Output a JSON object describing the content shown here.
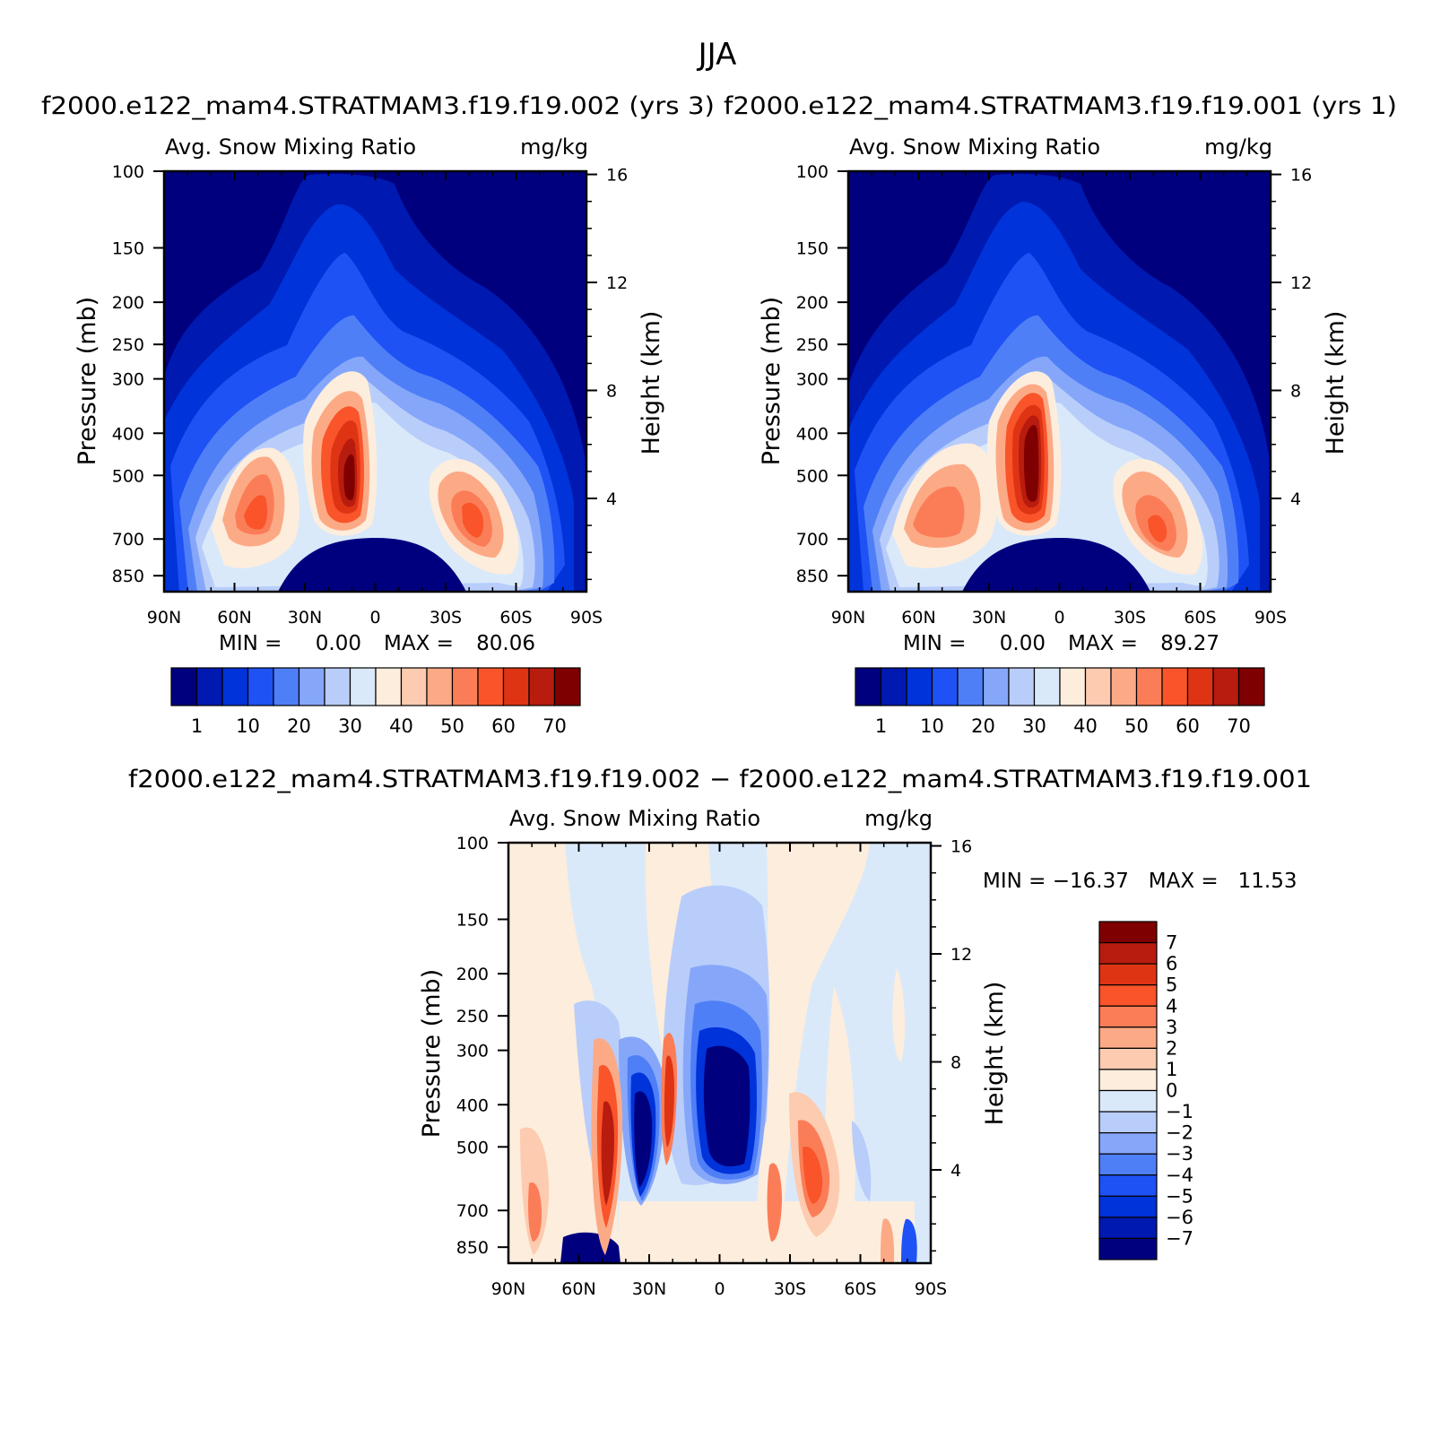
{
  "page": {
    "season": "JJA"
  },
  "panels": [
    {
      "case_header": "f2000.e122_mam4.STRATMAM3.f19.f19.002 (yrs 3)",
      "left_title": "Avg. Snow Mixing Ratio",
      "right_title": "mg/kg",
      "ylabel": "Pressure (mb)",
      "y2label": "Height (km)",
      "min_text": "MIN =",
      "min_val": "0.00",
      "max_text": "MAX =",
      "max_val": "80.06"
    },
    {
      "case_header": "f2000.e122_mam4.STRATMAM3.f19.f19.001 (yrs 1)",
      "left_title": "Avg. Snow Mixing Ratio",
      "right_title": "mg/kg",
      "ylabel": "Pressure (mb)",
      "y2label": "Height (km)",
      "min_text": "MIN =",
      "min_val": "0.00",
      "max_text": "MAX =",
      "max_val": "89.27"
    },
    {
      "case_header": "f2000.e122_mam4.STRATMAM3.f19.f19.002 − f2000.e122_mam4.STRATMAM3.f19.f19.001",
      "left_title": "Avg. Snow Mixing Ratio",
      "right_title": "mg/kg",
      "ylabel": "Pressure (mb)",
      "y2label": "Height (km)",
      "minmax": "MIN = −16.37   MAX =   11.53"
    }
  ],
  "axes": {
    "x_ticks": [
      "90N",
      "60N",
      "30N",
      "0",
      "30S",
      "60S",
      "90S"
    ],
    "y_ticks": [
      "100",
      "150",
      "200",
      "250",
      "300",
      "400",
      "500",
      "700",
      "850"
    ],
    "height_ticks": [
      "16",
      "12",
      "8",
      "4"
    ]
  },
  "colorbars": {
    "mean": {
      "labels": [
        "1",
        "10",
        "20",
        "30",
        "40",
        "50",
        "60",
        "70"
      ],
      "colors": [
        "#00007f",
        "#0019b0",
        "#0033d9",
        "#1e52f5",
        "#4f7ff7",
        "#86a7f9",
        "#b9cdfa",
        "#d9e9fa",
        "#fdeddd",
        "#fdcbb0",
        "#fcaa86",
        "#fb7d57",
        "#f9542a",
        "#df3414",
        "#b81c0f",
        "#7f0000"
      ]
    },
    "diff": {
      "labels": [
        "7",
        "6",
        "5",
        "4",
        "3",
        "2",
        "1",
        "0",
        "−1",
        "−2",
        "−3",
        "−4",
        "−5",
        "−6",
        "−7"
      ],
      "colors": [
        "#7f0000",
        "#b81c0f",
        "#df3414",
        "#f9542a",
        "#fb7d57",
        "#fcaa86",
        "#fdcbb0",
        "#fdeddd",
        "#d9e9fa",
        "#b9cdfa",
        "#86a7f9",
        "#4f7ff7",
        "#1e52f5",
        "#0033d9",
        "#0019b0",
        "#00007f"
      ]
    }
  },
  "chart_data": [
    {
      "type": "heatmap",
      "title": "Avg. Snow Mixing Ratio",
      "subtitle": "f2000.e122_mam4.STRATMAM3.f19.f19.002 (yrs 3)",
      "units": "mg/kg",
      "xlabel": "",
      "ylabel": "Pressure (mb)",
      "y2label": "Height (km)",
      "xlim": [
        -90,
        90
      ],
      "ylim": [
        100,
        925
      ],
      "contour_levels": [
        1,
        5,
        10,
        15,
        20,
        25,
        30,
        35,
        40,
        45,
        50,
        55,
        60,
        65,
        70
      ],
      "min": 0.0,
      "max": 80.06,
      "features": [
        {
          "name": "tropical maximum",
          "lat": 10,
          "pres": 450,
          "value": 75
        },
        {
          "name": "NH midlatitude maximum",
          "lat": 47,
          "pres": 580,
          "value": 55
        },
        {
          "name": "SH midlatitude maximum",
          "lat": -40,
          "pres": 620,
          "value": 55
        }
      ]
    },
    {
      "type": "heatmap",
      "title": "Avg. Snow Mixing Ratio",
      "subtitle": "f2000.e122_mam4.STRATMAM3.f19.f19.001 (yrs 1)",
      "units": "mg/kg",
      "xlabel": "",
      "ylabel": "Pressure (mb)",
      "y2label": "Height (km)",
      "xlim": [
        -90,
        90
      ],
      "ylim": [
        100,
        925
      ],
      "contour_levels": [
        1,
        5,
        10,
        15,
        20,
        25,
        30,
        35,
        40,
        45,
        50,
        55,
        60,
        65,
        70
      ],
      "min": 0.0,
      "max": 89.27,
      "features": [
        {
          "name": "tropical maximum",
          "lat": 11,
          "pres": 440,
          "value": 80
        },
        {
          "name": "NH midlatitude maximum",
          "lat": 55,
          "pres": 600,
          "value": 48
        },
        {
          "name": "SH midlatitude maximum",
          "lat": -42,
          "pres": 640,
          "value": 52
        }
      ]
    },
    {
      "type": "heatmap",
      "title": "Avg. Snow Mixing Ratio",
      "subtitle": "f2000.e122_mam4.STRATMAM3.f19.f19.002 − f2000.e122_mam4.STRATMAM3.f19.f19.001",
      "units": "mg/kg",
      "xlabel": "",
      "ylabel": "Pressure (mb)",
      "y2label": "Height (km)",
      "xlim": [
        -90,
        90
      ],
      "ylim": [
        100,
        925
      ],
      "contour_levels": [
        -7,
        -6,
        -5,
        -4,
        -3,
        -2,
        -1,
        0,
        1,
        2,
        3,
        4,
        5,
        6,
        7
      ],
      "min": -16.37,
      "max": 11.53
    }
  ]
}
